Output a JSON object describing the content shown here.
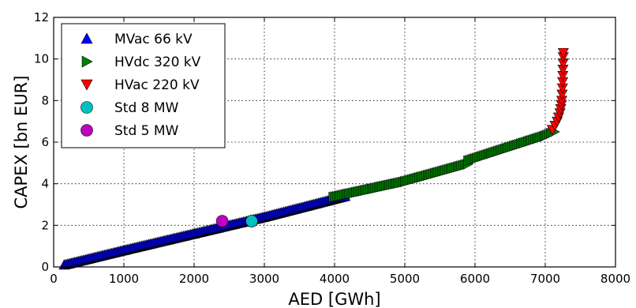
{
  "chart_data": {
    "type": "scatter",
    "xlabel": "AED [GWh]",
    "ylabel": "CAPEX [bn EUR]",
    "xlim": [
      0,
      8000
    ],
    "ylim": [
      0,
      12
    ],
    "x_ticks": [
      "0",
      "1000",
      "2000",
      "3000",
      "4000",
      "5000",
      "6000",
      "7000",
      "8000"
    ],
    "y_ticks": [
      "0",
      "2",
      "4",
      "6",
      "8",
      "10",
      "12"
    ],
    "grid": true,
    "legend_position": "top-left",
    "series": [
      {
        "name": "MVac 66 kV",
        "marker": "triangle-up",
        "color": "#0000ff",
        "segments": [
          {
            "x_start": 150,
            "y_start": 0.1,
            "x_end": 1000,
            "y_end": 0.8,
            "step": 25
          },
          {
            "x_start": 1000,
            "y_start": 0.8,
            "x_end": 2000,
            "y_end": 1.6,
            "step": 25
          },
          {
            "x_start": 2000,
            "y_start": 1.6,
            "x_end": 3000,
            "y_end": 2.4,
            "step": 25
          },
          {
            "x_start": 3000,
            "y_start": 2.4,
            "x_end": 4150,
            "y_end": 3.4,
            "step": 25
          }
        ]
      },
      {
        "name": "HVdc 320 kV",
        "marker": "triangle-right",
        "color": "#008000",
        "segments": [
          {
            "x_start": 3980,
            "y_start": 3.35,
            "x_end": 5000,
            "y_end": 4.1,
            "step": 25
          },
          {
            "x_start": 5000,
            "y_start": 4.1,
            "x_end": 5900,
            "y_end": 4.95,
            "step": 25
          },
          {
            "x_start": 5900,
            "y_start": 5.1,
            "x_end": 7000,
            "y_end": 6.3,
            "step": 25
          },
          {
            "x_start": 7000,
            "y_start": 6.3,
            "x_end": 7130,
            "y_end": 6.5,
            "step": 25
          }
        ]
      },
      {
        "name": "HVac 220 kV",
        "marker": "triangle-down",
        "color": "#ff0000",
        "points": [
          [
            7100,
            6.6
          ],
          [
            7140,
            6.8
          ],
          [
            7170,
            7.0
          ],
          [
            7190,
            7.2
          ],
          [
            7210,
            7.4
          ],
          [
            7220,
            7.6
          ],
          [
            7230,
            7.8
          ],
          [
            7235,
            8.0
          ],
          [
            7240,
            8.3
          ],
          [
            7245,
            8.6
          ],
          [
            7248,
            8.9
          ],
          [
            7250,
            9.2
          ],
          [
            7252,
            9.5
          ],
          [
            7254,
            9.8
          ],
          [
            7256,
            10.1
          ],
          [
            7257,
            10.3
          ]
        ]
      },
      {
        "name": "Std 8 MW",
        "marker": "circle",
        "color": "#00bfbf",
        "points": [
          [
            2820,
            2.2
          ]
        ]
      },
      {
        "name": "Std 5 MW",
        "marker": "circle",
        "color": "#bf00bf",
        "points": [
          [
            2400,
            2.2
          ]
        ]
      }
    ]
  }
}
